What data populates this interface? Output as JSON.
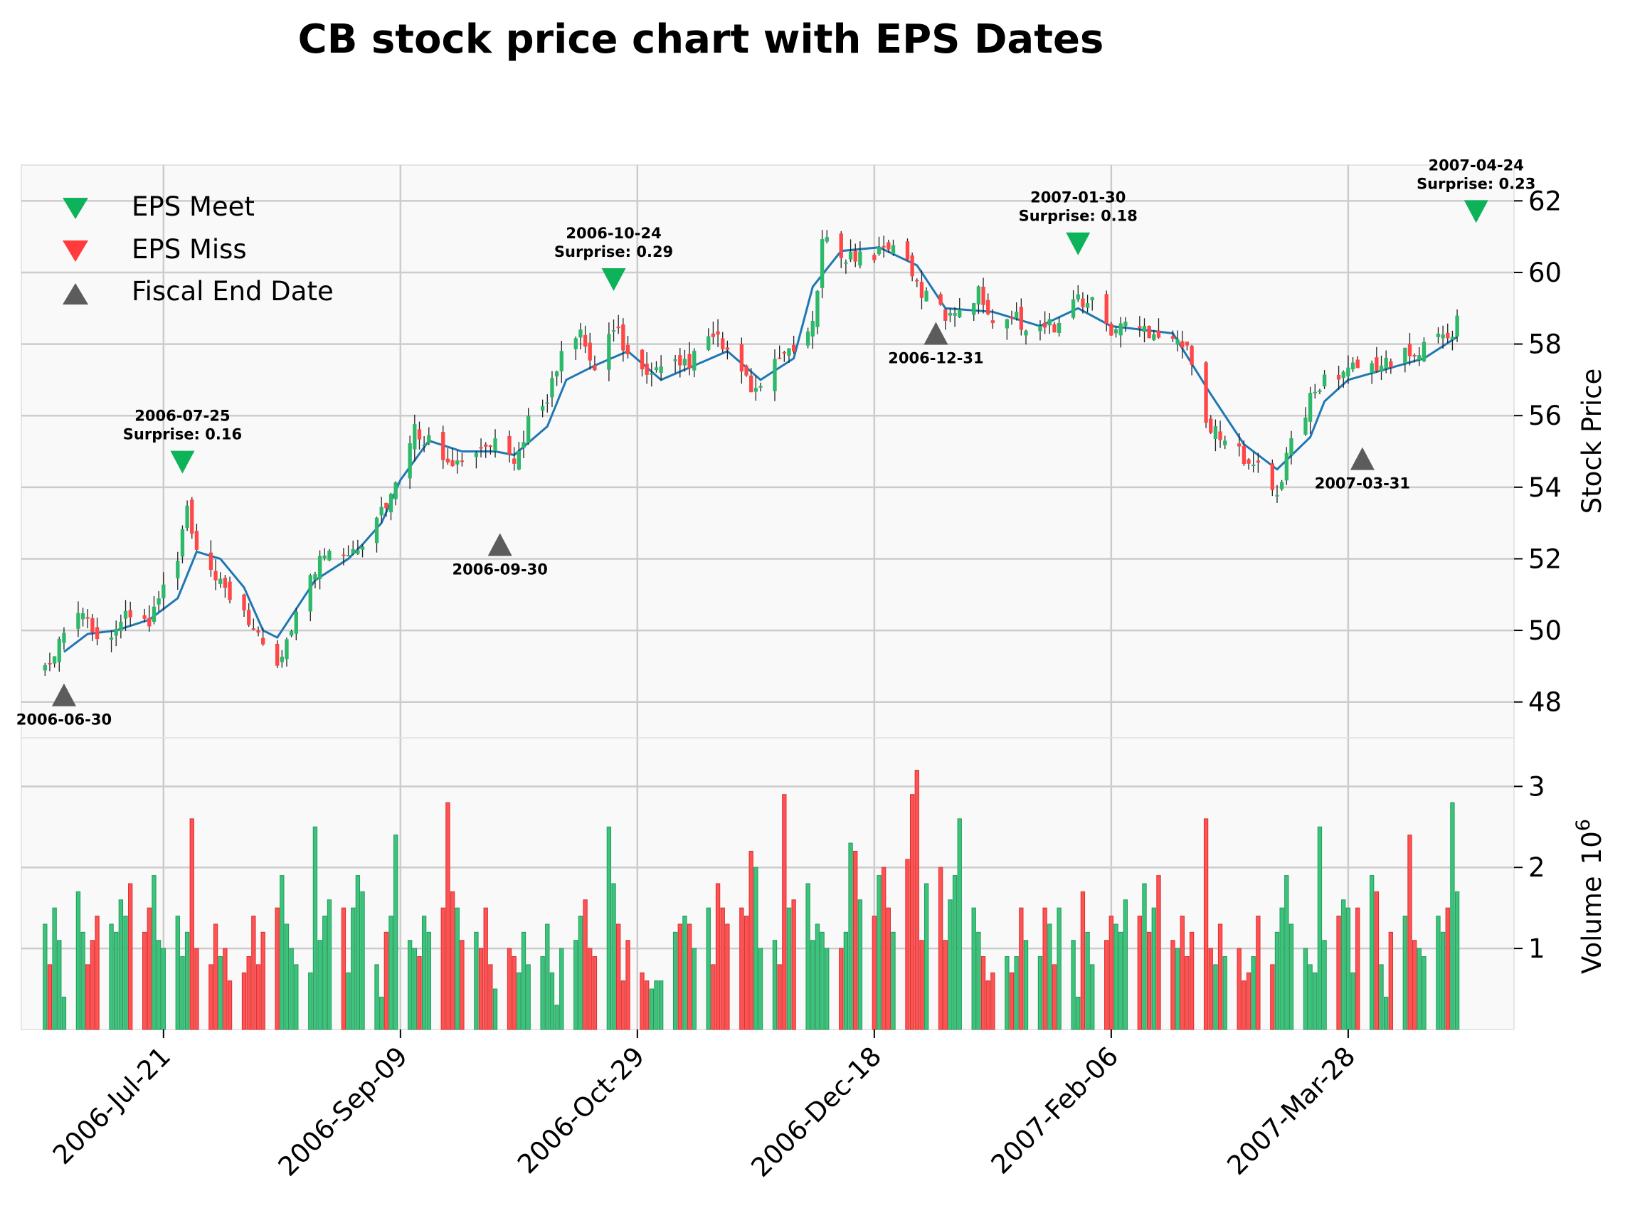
{
  "chart_data": {
    "type": "candlestick",
    "title": "CB stock price chart with EPS Dates",
    "ylabel_price": "Stock Price",
    "ylabel_volume": "Volume",
    "volume_exponent": "10",
    "volume_exponent_power": "6",
    "x_range": [
      "2006-06-21",
      "2007-05-02"
    ],
    "price_ylim": [
      47,
      63
    ],
    "volume_ylim": [
      0,
      3.6
    ],
    "price_ticks": [
      48,
      50,
      52,
      54,
      56,
      58,
      60,
      62
    ],
    "volume_ticks": [
      1,
      2,
      3
    ],
    "x_ticks": [
      {
        "date": "2006-07-21",
        "label": "2006-Jul-21"
      },
      {
        "date": "2006-09-09",
        "label": "2006-Sep-09"
      },
      {
        "date": "2006-10-29",
        "label": "2006-Oct-29"
      },
      {
        "date": "2006-12-18",
        "label": "2006-Dec-18"
      },
      {
        "date": "2007-02-06",
        "label": "2007-Feb-06"
      },
      {
        "date": "2007-03-28",
        "label": "2007-Mar-28"
      }
    ],
    "grid": true,
    "legend": {
      "placement": "top-left",
      "items": [
        {
          "label": "EPS Meet",
          "marker": "triangle-down",
          "color": "#0db359"
        },
        {
          "label": "EPS Miss",
          "marker": "triangle-down",
          "color": "#ff3b3b"
        },
        {
          "label": "Fiscal End Date",
          "marker": "triangle-up",
          "color": "#5c5c5c"
        }
      ]
    },
    "eps_events": [
      {
        "date": "2006-07-25",
        "date_label": "2006-07-25",
        "surprise_label": "Surprise: 0.16",
        "price": 54.7
      },
      {
        "date": "2006-10-24",
        "date_label": "2006-10-24",
        "surprise_label": "Surprise: 0.29",
        "price": 59.8
      },
      {
        "date": "2007-01-30",
        "date_label": "2007-01-30",
        "surprise_label": "Surprise: 0.18",
        "price": 60.8
      },
      {
        "date": "2007-04-24",
        "date_label": "2007-04-24",
        "surprise_label": "Surprise: 0.23",
        "price": 61.7
      }
    ],
    "fiscal_end_dates": [
      {
        "date": "2006-06-30",
        "label": "2006-06-30",
        "price": 48.2
      },
      {
        "date": "2006-09-30",
        "label": "2006-09-30",
        "price": 52.4
      },
      {
        "date": "2006-12-31",
        "label": "2006-12-31",
        "price": 58.3
      },
      {
        "date": "2007-03-31",
        "label": "2007-03-31",
        "price": 54.8
      }
    ],
    "price_anchors": [
      [
        "2006-06-26",
        49.0
      ],
      [
        "2006-06-28",
        49.3
      ],
      [
        "2006-06-30",
        50.1
      ],
      [
        "2006-07-05",
        50.6
      ],
      [
        "2006-07-07",
        49.6
      ],
      [
        "2006-07-11",
        50.2
      ],
      [
        "2006-07-14",
        50.4
      ],
      [
        "2006-07-18",
        50.2
      ],
      [
        "2006-07-21",
        51.2
      ],
      [
        "2006-07-24",
        51.9
      ],
      [
        "2006-07-26",
        53.4
      ],
      [
        "2006-07-28",
        52.0
      ],
      [
        "2006-08-02",
        51.2
      ],
      [
        "2006-08-07",
        50.6
      ],
      [
        "2006-08-11",
        49.4
      ],
      [
        "2006-08-14",
        49.0
      ],
      [
        "2006-08-17",
        50.2
      ],
      [
        "2006-08-21",
        51.4
      ],
      [
        "2006-08-24",
        52.2
      ],
      [
        "2006-08-29",
        52.3
      ],
      [
        "2006-09-01",
        52.5
      ],
      [
        "2006-09-05",
        53.4
      ],
      [
        "2006-09-09",
        54.2
      ],
      [
        "2006-09-12",
        55.6
      ],
      [
        "2006-09-15",
        55.3
      ],
      [
        "2006-09-19",
        54.9
      ],
      [
        "2006-09-22",
        54.6
      ],
      [
        "2006-09-26",
        55.0
      ],
      [
        "2006-09-29",
        55.2
      ],
      [
        "2006-10-03",
        54.5
      ],
      [
        "2006-10-06",
        55.9
      ],
      [
        "2006-10-10",
        56.6
      ],
      [
        "2006-10-13",
        57.6
      ],
      [
        "2006-10-17",
        58.2
      ],
      [
        "2006-10-20",
        57.2
      ],
      [
        "2006-10-24",
        58.6
      ],
      [
        "2006-10-27",
        57.7
      ],
      [
        "2006-10-31",
        57.0
      ],
      [
        "2006-11-03",
        57.2
      ],
      [
        "2006-11-07",
        57.4
      ],
      [
        "2006-11-10",
        57.6
      ],
      [
        "2006-11-14",
        58.2
      ],
      [
        "2006-11-17",
        57.8
      ],
      [
        "2006-11-21",
        56.9
      ],
      [
        "2006-11-24",
        56.6
      ],
      [
        "2006-11-28",
        57.6
      ],
      [
        "2006-12-01",
        58.0
      ],
      [
        "2006-12-05",
        58.4
      ],
      [
        "2006-12-07",
        60.8
      ],
      [
        "2006-12-11",
        60.6
      ],
      [
        "2006-12-14",
        60.4
      ],
      [
        "2006-12-19",
        60.6
      ],
      [
        "2006-12-22",
        60.9
      ],
      [
        "2006-12-27",
        59.6
      ],
      [
        "2007-01-02",
        58.8
      ],
      [
        "2007-01-05",
        59.1
      ],
      [
        "2007-01-09",
        59.4
      ],
      [
        "2007-01-12",
        58.8
      ],
      [
        "2007-01-17",
        58.7
      ],
      [
        "2007-01-22",
        58.4
      ],
      [
        "2007-01-26",
        58.6
      ],
      [
        "2007-01-30",
        59.3
      ],
      [
        "2007-02-02",
        59.1
      ],
      [
        "2007-02-06",
        58.4
      ],
      [
        "2007-02-09",
        58.5
      ],
      [
        "2007-02-14",
        58.4
      ],
      [
        "2007-02-19",
        58.3
      ],
      [
        "2007-02-22",
        57.8
      ],
      [
        "2007-02-27",
        55.6
      ],
      [
        "2007-03-02",
        55.2
      ],
      [
        "2007-03-06",
        54.9
      ],
      [
        "2007-03-09",
        54.8
      ],
      [
        "2007-03-13",
        53.6
      ],
      [
        "2007-03-16",
        55.4
      ],
      [
        "2007-03-20",
        56.4
      ],
      [
        "2007-03-23",
        57.0
      ],
      [
        "2007-03-28",
        57.3
      ],
      [
        "2007-04-02",
        57.4
      ],
      [
        "2007-04-05",
        57.5
      ],
      [
        "2007-04-10",
        57.7
      ],
      [
        "2007-04-13",
        57.9
      ],
      [
        "2007-04-18",
        58.3
      ],
      [
        "2007-04-20",
        58.6
      ]
    ],
    "moving_average": [
      [
        "2006-06-30",
        49.4
      ],
      [
        "2006-07-05",
        49.9
      ],
      [
        "2006-07-11",
        50.0
      ],
      [
        "2006-07-18",
        50.3
      ],
      [
        "2006-07-24",
        50.9
      ],
      [
        "2006-07-28",
        52.2
      ],
      [
        "2006-08-02",
        52.0
      ],
      [
        "2006-08-07",
        51.2
      ],
      [
        "2006-08-11",
        50.0
      ],
      [
        "2006-08-14",
        49.8
      ],
      [
        "2006-08-18",
        50.6
      ],
      [
        "2006-08-22",
        51.4
      ],
      [
        "2006-08-29",
        52.0
      ],
      [
        "2006-09-01",
        52.4
      ],
      [
        "2006-09-05",
        53.0
      ],
      [
        "2006-09-09",
        54.2
      ],
      [
        "2006-09-15",
        55.3
      ],
      [
        "2006-09-22",
        55.0
      ],
      [
        "2006-09-29",
        55.0
      ],
      [
        "2006-10-03",
        54.9
      ],
      [
        "2006-10-10",
        55.7
      ],
      [
        "2006-10-14",
        57.0
      ],
      [
        "2006-10-20",
        57.4
      ],
      [
        "2006-10-27",
        57.8
      ],
      [
        "2006-11-03",
        57.0
      ],
      [
        "2006-11-10",
        57.4
      ],
      [
        "2006-11-17",
        57.8
      ],
      [
        "2006-11-24",
        57.0
      ],
      [
        "2006-12-01",
        57.6
      ],
      [
        "2006-12-05",
        59.6
      ],
      [
        "2006-12-11",
        60.6
      ],
      [
        "2006-12-19",
        60.7
      ],
      [
        "2006-12-27",
        60.2
      ],
      [
        "2007-01-02",
        59.0
      ],
      [
        "2007-01-12",
        58.9
      ],
      [
        "2007-01-22",
        58.5
      ],
      [
        "2007-01-30",
        59.0
      ],
      [
        "2007-02-06",
        58.5
      ],
      [
        "2007-02-19",
        58.3
      ],
      [
        "2007-02-27",
        56.6
      ],
      [
        "2007-03-06",
        55.2
      ],
      [
        "2007-03-13",
        54.5
      ],
      [
        "2007-03-20",
        55.4
      ],
      [
        "2007-03-23",
        56.4
      ],
      [
        "2007-03-28",
        57.0
      ],
      [
        "2007-04-05",
        57.3
      ],
      [
        "2007-04-13",
        57.6
      ],
      [
        "2007-04-20",
        58.2
      ]
    ],
    "volume_pattern": [
      1.3,
      0.8,
      1.5,
      1.1,
      0.4,
      1.7,
      1.2,
      0.8,
      1.1,
      1.4,
      1.3,
      1.2,
      1.6,
      1.4,
      1.8,
      1.2,
      1.5,
      1.9,
      1.1,
      1.0,
      1.4,
      0.9,
      1.2,
      2.6,
      1.0,
      0.8,
      1.3,
      0.9,
      1.0,
      0.6,
      0.7,
      0.9,
      1.4,
      0.8,
      1.2,
      1.5,
      1.9,
      1.3,
      1.0,
      0.8,
      0.7,
      2.5,
      1.1,
      1.4,
      1.6,
      1.5,
      0.7,
      1.5,
      1.9,
      1.7,
      0.8,
      0.4,
      1.2,
      1.4,
      2.4,
      1.1,
      1.0,
      0.9,
      1.4,
      1.2,
      1.5,
      2.8,
      1.7,
      1.5,
      1.1,
      1.2,
      1.0,
      1.5,
      0.8,
      0.5,
      1.0,
      0.9,
      0.7,
      1.2,
      0.8,
      0.9,
      1.3,
      0.7,
      0.3,
      1.0,
      1.1,
      1.4,
      1.6,
      1.0,
      0.9,
      2.5,
      1.8,
      1.3,
      0.6,
      1.1,
      0.7,
      0.6,
      0.5,
      0.6,
      0.6,
      1.2,
      1.3,
      1.4,
      1.3,
      1.0,
      1.5,
      0.8,
      1.8,
      1.5,
      1.3,
      1.5,
      1.4,
      2.2,
      2.0,
      1.0,
      1.1,
      0.8,
      2.9,
      1.5,
      1.6,
      1.8,
      1.1,
      1.3,
      1.2,
      1.0,
      1.0,
      1.2,
      2.3,
      2.2,
      1.6,
      1.4,
      1.9,
      2.0,
      1.5,
      1.2,
      2.1,
      2.9,
      3.2,
      1.1,
      1.8,
      2.0,
      1.1,
      1.6,
      1.9,
      2.6,
      1.5,
      1.2,
      0.9,
      0.6,
      0.7,
      0.9,
      0.7,
      0.9,
      1.5,
      1.1,
      0.9,
      1.5
    ]
  }
}
